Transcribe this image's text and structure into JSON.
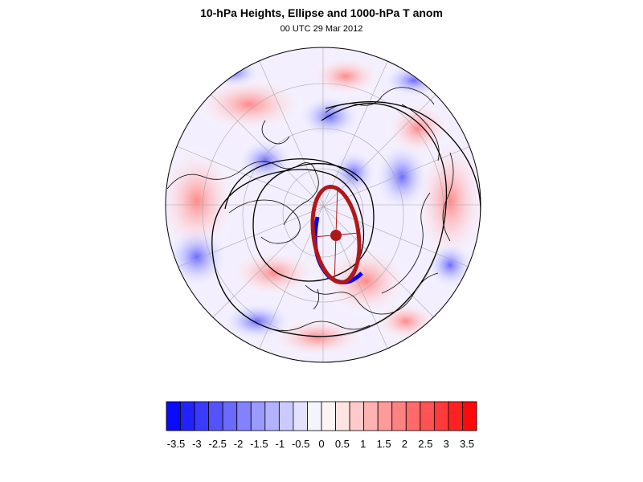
{
  "figure": {
    "title": "10-hPa Heights, Ellipse and 1000-hPa T anom",
    "subtitle": "00 UTC 29 Mar 2012"
  },
  "map": {
    "projection": "north-polar-orthographic",
    "field": "1000-hPa temperature anomaly",
    "overlays": [
      "10-hPa height contours",
      "vortex ellipse",
      "ellipse centroid"
    ],
    "ellipse_colors": {
      "fill_outline": "#b01818",
      "partial": "#0000ff"
    },
    "contour_color": "#000000"
  },
  "colorbar": {
    "tick_labels": [
      "-3.5",
      "-3",
      "-2.5",
      "-2",
      "-1.5",
      "-1",
      "-0.5",
      "0",
      "0.5",
      "1",
      "1.5",
      "2",
      "2.5",
      "3",
      "3.5"
    ],
    "colors": [
      "#0a0aff",
      "#2222ff",
      "#3a3aff",
      "#5252ff",
      "#6a6aff",
      "#8282ff",
      "#9a9aff",
      "#b2b2ff",
      "#cacaff",
      "#e2e2ff",
      "#f4f4ff",
      "#fff4f4",
      "#ffe2e2",
      "#ffcaca",
      "#ffb2b2",
      "#ff9a9a",
      "#ff8282",
      "#ff6a6a",
      "#ff5252",
      "#ff3a3a",
      "#ff2222",
      "#ff0a0a"
    ],
    "neutral_color": "#ffffff"
  }
}
